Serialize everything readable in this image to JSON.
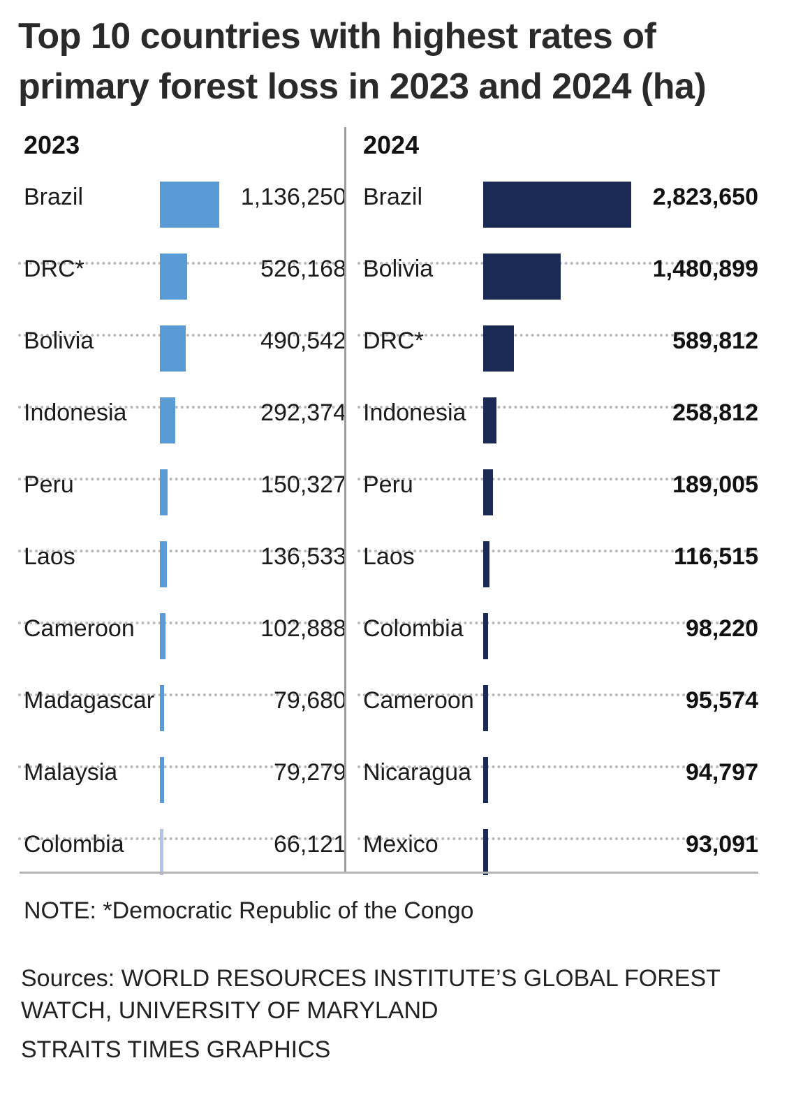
{
  "title": "Top 10 countries with highest rates of\nprimary forest loss in 2023 and 2024 (ha)",
  "chart_data": [
    {
      "type": "bar",
      "title": "2023",
      "orientation": "horizontal",
      "categories": [
        "Brazil",
        "DRC*",
        "Bolivia",
        "Indonesia",
        "Peru",
        "Laos",
        "Cameroon",
        "Madagascar",
        "Malaysia",
        "Colombia"
      ],
      "values": [
        1136250,
        526168,
        490542,
        292374,
        150327,
        136533,
        102888,
        79680,
        79279,
        66121
      ],
      "value_labels": [
        "1,136,250",
        "526,168",
        "490,542",
        "292,374",
        "150,327",
        "136,533",
        "102,888",
        "79,680",
        "79,279",
        "66,121"
      ],
      "color": "#5b9bd5",
      "last_bar_color": "#b4c4e4"
    },
    {
      "type": "bar",
      "title": "2024",
      "orientation": "horizontal",
      "categories": [
        "Brazil",
        "Bolivia",
        "DRC*",
        "Indonesia",
        "Peru",
        "Laos",
        "Colombia",
        "Cameroon",
        "Nicaragua",
        "Mexico"
      ],
      "values": [
        2823650,
        1480899,
        589812,
        258812,
        189005,
        116515,
        98220,
        95574,
        94797,
        93091
      ],
      "value_labels": [
        "2,823,650",
        "1,480,899",
        "589,812",
        "258,812",
        "189,005",
        "116,515",
        "98,220",
        "95,574",
        "94,797",
        "93,091"
      ],
      "color": "#1b2a55"
    }
  ],
  "note": "NOTE: *Democratic Republic of the Congo",
  "sources": "Sources: WORLD RESOURCES INSTITUTE’S GLOBAL FOREST WATCH, UNIVERSITY OF MARYLAND",
  "credit": "STRAITS TIMES GRAPHICS"
}
